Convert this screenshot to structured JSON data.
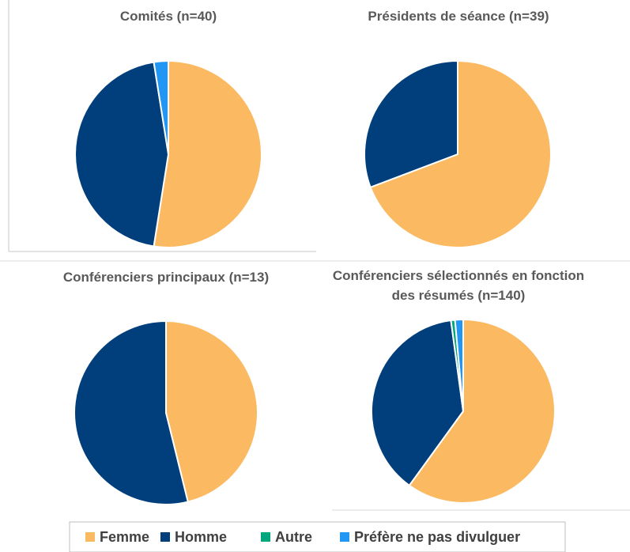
{
  "chart_data": [
    {
      "type": "pie",
      "title": "Comités (n=40)",
      "values": [
        21,
        18,
        0,
        1
      ]
    },
    {
      "type": "pie",
      "title": "Présidents de séance (n=39)",
      "values": [
        27,
        12,
        0,
        0
      ]
    },
    {
      "type": "pie",
      "title": "Conférenciers principaux (n=13)",
      "values": [
        6,
        7,
        0,
        0
      ]
    },
    {
      "type": "pie",
      "title": "Conférenciers sélectionnés en fonction des résumés (n=140)",
      "values": [
        84,
        53,
        1,
        2
      ]
    }
  ],
  "legend": {
    "labels": [
      "Femme",
      "Homme",
      "Autre",
      "Préfère ne pas divulguer"
    ],
    "colors": [
      "#FBB961",
      "#013F7C",
      "#00A67E",
      "#2196F3"
    ]
  }
}
